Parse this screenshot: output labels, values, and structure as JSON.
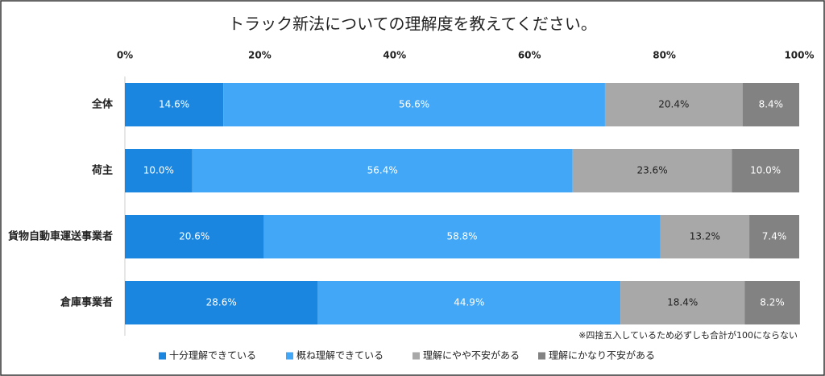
{
  "chart_data": {
    "type": "stacked_barh",
    "title": "トラック新法についての理解度を教えてください。",
    "categories": [
      "全体",
      "荷主",
      "貨物自動車運送事業者",
      "倉庫事業者"
    ],
    "series": [
      {
        "name": "十分理解できている",
        "color": "#1a86e0",
        "values": [
          14.6,
          10.0,
          20.6,
          28.6
        ],
        "value_labels": [
          "14.6%",
          "10.0%",
          "20.6%",
          "28.6%"
        ]
      },
      {
        "name": "概ね理解できている",
        "color": "#42a7f7",
        "values": [
          56.6,
          56.4,
          58.8,
          44.9
        ],
        "value_labels": [
          "56.6%",
          "56.4%",
          "58.8%",
          "44.9%"
        ]
      },
      {
        "name": "理解にやや不安がある",
        "color": "#a8a8a8",
        "values": [
          20.4,
          23.6,
          13.2,
          18.4
        ],
        "value_labels": [
          "20.4%",
          "23.6%",
          "13.2%",
          "18.4%"
        ]
      },
      {
        "name": "理解にかなり不安がある",
        "color": "#828282",
        "values": [
          8.4,
          10.0,
          7.4,
          8.2
        ],
        "value_labels": [
          "8.4%",
          "10.0%",
          "7.4%",
          "8.2%"
        ]
      }
    ],
    "xlim": [
      0,
      100
    ],
    "xticks": [
      {
        "value": 0,
        "label": "0%"
      },
      {
        "value": 20,
        "label": "20%"
      },
      {
        "value": 40,
        "label": "40%"
      },
      {
        "value": 60,
        "label": "60%"
      },
      {
        "value": 80,
        "label": "80%"
      },
      {
        "value": 100,
        "label": "100%"
      }
    ],
    "note": "※四捨五入しているため必ずしも合計が100にならない",
    "legend": "bottom"
  }
}
